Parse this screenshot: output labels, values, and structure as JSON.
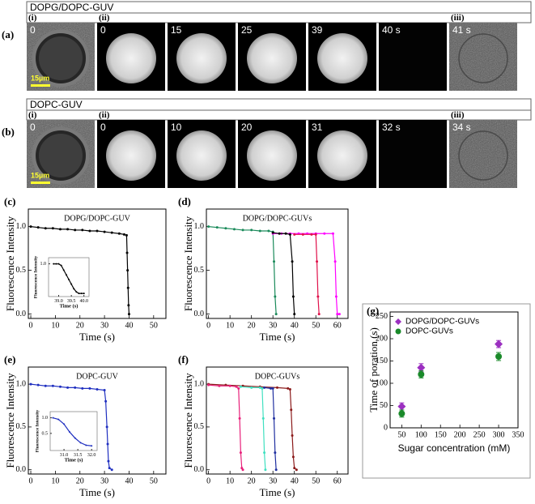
{
  "panels": [
    {
      "label": "(a)",
      "header": "DOPG/DOPC-GUV",
      "groups": [
        "(i)",
        "(ii)",
        "(iii)"
      ],
      "frames": [
        "0",
        "0",
        "15",
        "25",
        "39",
        "40 s",
        "41 s"
      ],
      "scale": "15µm"
    },
    {
      "label": "(b)",
      "header": "DOPC-GUV",
      "groups": [
        "(i)",
        "(ii)",
        "(iii)"
      ],
      "frames": [
        "0",
        "0",
        "10",
        "20",
        "31",
        "32 s",
        "34 s"
      ],
      "scale": "15µm"
    }
  ],
  "chart_data": [
    {
      "type": "line",
      "panel": "(c)",
      "title": "DOPG/DOPC-GUV",
      "x_label": "Time (s)",
      "y_label": "Fluorescence Intensity",
      "xlim": [
        -1,
        55
      ],
      "ylim": [
        -0.05,
        1.2
      ],
      "xticks": [
        0,
        10,
        20,
        30,
        40,
        50
      ],
      "yticks": [
        {
          "value": 0,
          "label": "0.0"
        },
        {
          "value": 0.5,
          "label": "0.5"
        },
        {
          "value": 1,
          "label": "1.0"
        }
      ],
      "series": [
        {
          "color": "#000000",
          "x": [
            0,
            3,
            6,
            9,
            12,
            15,
            18,
            21,
            24,
            27,
            30,
            33,
            36,
            38,
            39,
            39.2,
            39.4,
            39.6,
            39.8,
            40
          ],
          "values": [
            1.0,
            0.99,
            0.98,
            0.98,
            0.97,
            0.97,
            0.96,
            0.96,
            0.95,
            0.95,
            0.94,
            0.93,
            0.92,
            0.91,
            0.9,
            0.7,
            0.5,
            0.3,
            0.1,
            0.0
          ]
        }
      ],
      "inset": {
        "x_label": "Time (s)",
        "y_label": "Fluorescence Intensity",
        "xlim": [
          38.6,
          40.2
        ],
        "ylim": [
          -0.05,
          1.2
        ],
        "xticks": [
          {
            "value": 39,
            "label": "39.0"
          },
          {
            "value": 39.5,
            "label": "39.5"
          },
          {
            "value": 40,
            "label": "40.0"
          }
        ],
        "yticks": [
          {
            "value": 1,
            "label": "1.0"
          }
        ],
        "series": [
          {
            "color": "#000000",
            "x": [
              38.8,
              38.9,
              39.0,
              39.1,
              39.2,
              39.3,
              39.4,
              39.5,
              39.6,
              39.7,
              39.8,
              39.9,
              40.0
            ],
            "values": [
              1.0,
              1.0,
              1.0,
              0.95,
              0.8,
              0.65,
              0.5,
              0.35,
              0.2,
              0.1,
              0.05,
              0.05,
              0.05
            ]
          }
        ]
      }
    },
    {
      "type": "line",
      "panel": "(d)",
      "title": "DOPG/DOPC-GUVs",
      "x_label": "Time (s)",
      "y_label": "Fluorescence Intensity",
      "xlim": [
        -1,
        65
      ],
      "ylim": [
        -0.05,
        1.2
      ],
      "xticks": [
        0,
        10,
        20,
        30,
        40,
        50,
        60
      ],
      "yticks": [
        {
          "value": 0,
          "label": "0.0"
        },
        {
          "value": 0.5,
          "label": "0.5"
        },
        {
          "value": 1,
          "label": "1.0"
        }
      ],
      "series": [
        {
          "color": "#1a8a5a",
          "x": [
            0,
            4,
            8,
            12,
            16,
            20,
            24,
            28,
            30,
            30.5,
            31,
            31.5
          ],
          "values": [
            1.0,
            0.99,
            0.98,
            0.97,
            0.96,
            0.96,
            0.95,
            0.95,
            0.94,
            0.6,
            0.2,
            0.0
          ]
        },
        {
          "color": "#ff00ff",
          "x": [
            30,
            34,
            38,
            42,
            46,
            50,
            54,
            58,
            59,
            59.5,
            60,
            61
          ],
          "values": [
            0.92,
            0.92,
            0.92,
            0.92,
            0.92,
            0.92,
            0.92,
            0.92,
            0.6,
            0.2,
            0.0,
            0.0
          ]
        },
        {
          "color": "#000000",
          "x": [
            30,
            33,
            36,
            38,
            39,
            39.5,
            40
          ],
          "values": [
            0.93,
            0.92,
            0.92,
            0.91,
            0.6,
            0.2,
            0.0
          ]
        },
        {
          "color": "#e0104a",
          "x": [
            40,
            44,
            48,
            50,
            50.5,
            51,
            51.5
          ],
          "values": [
            0.91,
            0.91,
            0.91,
            0.91,
            0.6,
            0.2,
            0.0
          ]
        }
      ]
    },
    {
      "type": "line",
      "panel": "(e)",
      "title": "DOPC-GUV",
      "x_label": "Time (s)",
      "y_label": "Fluorescence Intensity",
      "xlim": [
        -1,
        55
      ],
      "ylim": [
        -0.05,
        1.2
      ],
      "xticks": [
        0,
        10,
        20,
        30,
        40,
        50
      ],
      "yticks": [
        {
          "value": 0,
          "label": "0.0"
        },
        {
          "value": 0.5,
          "label": "0.5"
        },
        {
          "value": 1,
          "label": "1.0"
        }
      ],
      "series": [
        {
          "color": "#1f2fc0",
          "x": [
            0,
            3,
            6,
            9,
            12,
            15,
            18,
            21,
            24,
            27,
            30,
            30.5,
            31,
            31.3,
            31.6,
            32,
            33
          ],
          "values": [
            1.0,
            0.99,
            0.98,
            0.98,
            0.97,
            0.96,
            0.96,
            0.95,
            0.95,
            0.94,
            0.93,
            0.8,
            0.5,
            0.3,
            0.1,
            0.02,
            0.0
          ]
        }
      ],
      "inset": {
        "x_label": "Time (s)",
        "y_label": "Fluorescence Intensity",
        "xlim": [
          30.5,
          32.2
        ],
        "ylim": [
          -0.05,
          1.2
        ],
        "xticks": [
          {
            "value": 31,
            "label": "31.0"
          },
          {
            "value": 31.5,
            "label": "31.5"
          },
          {
            "value": 32,
            "label": "32.0"
          }
        ],
        "yticks": [
          {
            "value": 0.5,
            "label": "0.5"
          },
          {
            "value": 1,
            "label": "1.0"
          }
        ],
        "series": [
          {
            "color": "#1f2fc0",
            "x": [
              30.6,
              30.8,
              31.0,
              31.2,
              31.4,
              31.6,
              31.8,
              32.0
            ],
            "values": [
              1.0,
              0.95,
              0.8,
              0.55,
              0.35,
              0.2,
              0.12,
              0.1
            ]
          }
        ]
      }
    },
    {
      "type": "line",
      "panel": "(f)",
      "title": "DOPC-GUVs",
      "x_label": "Time (s)",
      "y_label": "Fluorescence Intensity",
      "xlim": [
        -1,
        65
      ],
      "ylim": [
        -0.05,
        1.2
      ],
      "xticks": [
        0,
        10,
        20,
        30,
        40,
        50,
        60
      ],
      "yticks": [
        {
          "value": 0,
          "label": "0.0"
        },
        {
          "value": 0.5,
          "label": "0.5"
        },
        {
          "value": 1,
          "label": "1.0"
        }
      ],
      "series": [
        {
          "color": "#8b1a1a",
          "x": [
            0,
            8,
            16,
            24,
            32,
            37,
            38,
            38.5,
            39,
            39.5,
            40,
            41
          ],
          "values": [
            1.0,
            0.99,
            0.98,
            0.97,
            0.96,
            0.95,
            0.94,
            0.7,
            0.4,
            0.15,
            0.02,
            0.0
          ]
        },
        {
          "color": "#e8207a",
          "x": [
            0,
            5,
            10,
            13,
            14,
            14.5,
            15,
            15.5,
            16
          ],
          "values": [
            0.99,
            0.98,
            0.98,
            0.97,
            0.95,
            0.6,
            0.2,
            0.02,
            0.0
          ]
        },
        {
          "color": "#40e0c0",
          "x": [
            15,
            20,
            24,
            25,
            25.5,
            26,
            26.5
          ],
          "values": [
            0.97,
            0.96,
            0.96,
            0.95,
            0.6,
            0.2,
            0.0
          ]
        },
        {
          "color": "#1f2fa0",
          "x": [
            26,
            29,
            30,
            30.5,
            31,
            31.5
          ],
          "values": [
            0.96,
            0.95,
            0.95,
            0.6,
            0.2,
            0.0
          ]
        }
      ]
    },
    {
      "type": "scatter",
      "panel": "(g)",
      "x_label": "Sugar concentration (mM)",
      "y_label": "Time of poration (s)",
      "xlim": [
        20,
        350
      ],
      "ylim": [
        0,
        260
      ],
      "xticks": [
        50,
        100,
        150,
        200,
        250,
        300,
        350
      ],
      "yticks": [
        0,
        50,
        100,
        150,
        200,
        250
      ],
      "series": [
        {
          "name": "DOPG/DOPC-GUVs",
          "color": "#9b30c0",
          "marker": "diamond",
          "x": [
            50,
            100,
            300
          ],
          "values": [
            48,
            135,
            188
          ],
          "errors": [
            8,
            9,
            8
          ]
        },
        {
          "name": "DOPC-GUVs",
          "color": "#1a8a2a",
          "marker": "circle",
          "x": [
            50,
            100,
            300
          ],
          "values": [
            32,
            120,
            160
          ],
          "errors": [
            8,
            8,
            9
          ]
        }
      ]
    }
  ]
}
